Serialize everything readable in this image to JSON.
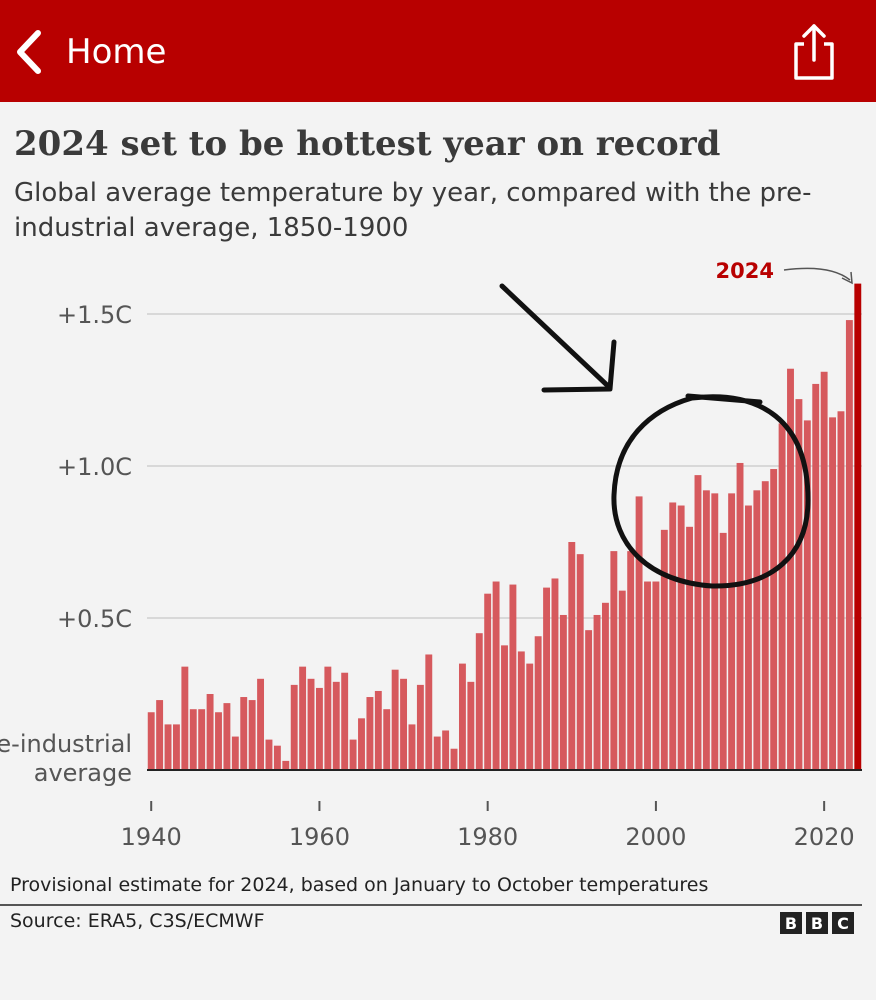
{
  "header": {
    "back_label": "Home",
    "bar_color": "#b80000",
    "back_icon": "chevron-left-icon",
    "share_icon": "share-icon"
  },
  "article": {
    "title": "2024 set to be hottest year on record",
    "subtitle": "Global average temperature by year, compared with the pre-industrial average, 1850-1900"
  },
  "chart_data": {
    "type": "bar",
    "title": "2024 set to be hottest year on record",
    "subtitle": "Global average temperature by year, compared with the pre-industrial average, 1850-1900",
    "x": [
      1940,
      1941,
      1942,
      1943,
      1944,
      1945,
      1946,
      1947,
      1948,
      1949,
      1950,
      1951,
      1952,
      1953,
      1954,
      1955,
      1956,
      1957,
      1958,
      1959,
      1960,
      1961,
      1962,
      1963,
      1964,
      1965,
      1966,
      1967,
      1968,
      1969,
      1970,
      1971,
      1972,
      1973,
      1974,
      1975,
      1976,
      1977,
      1978,
      1979,
      1980,
      1981,
      1982,
      1983,
      1984,
      1985,
      1986,
      1987,
      1988,
      1989,
      1990,
      1991,
      1992,
      1993,
      1994,
      1995,
      1996,
      1997,
      1998,
      1999,
      2000,
      2001,
      2002,
      2003,
      2004,
      2005,
      2006,
      2007,
      2008,
      2009,
      2010,
      2011,
      2012,
      2013,
      2014,
      2015,
      2016,
      2017,
      2018,
      2019,
      2020,
      2021,
      2022,
      2023,
      2024
    ],
    "values": [
      0.19,
      0.23,
      0.15,
      0.15,
      0.34,
      0.2,
      0.2,
      0.25,
      0.19,
      0.22,
      0.11,
      0.24,
      0.23,
      0.3,
      0.1,
      0.08,
      0.03,
      0.28,
      0.34,
      0.3,
      0.27,
      0.34,
      0.29,
      0.32,
      0.1,
      0.17,
      0.24,
      0.26,
      0.2,
      0.33,
      0.3,
      0.15,
      0.28,
      0.38,
      0.11,
      0.13,
      0.07,
      0.35,
      0.29,
      0.45,
      0.58,
      0.62,
      0.41,
      0.61,
      0.39,
      0.35,
      0.44,
      0.6,
      0.63,
      0.51,
      0.75,
      0.71,
      0.46,
      0.51,
      0.55,
      0.72,
      0.59,
      0.72,
      0.9,
      0.62,
      0.62,
      0.79,
      0.88,
      0.87,
      0.8,
      0.97,
      0.92,
      0.91,
      0.78,
      0.91,
      1.01,
      0.87,
      0.92,
      0.95,
      0.99,
      1.14,
      1.32,
      1.22,
      1.15,
      1.27,
      1.31,
      1.16,
      1.18,
      1.48,
      1.6
    ],
    "highlight": {
      "year": 2024,
      "label": "2024",
      "color": "#b80000"
    },
    "bar_color": "#d6595d",
    "y_ticks": [
      {
        "value": 0,
        "label": "pre-industrial average"
      },
      {
        "value": 0.5,
        "label": "+0.5C"
      },
      {
        "value": 1.0,
        "label": "+1.0C"
      },
      {
        "value": 1.5,
        "label": "+1.5C"
      }
    ],
    "x_ticks": [
      {
        "value": 1940,
        "label": "1940"
      },
      {
        "value": 1960,
        "label": "1960"
      },
      {
        "value": 1980,
        "label": "1980"
      },
      {
        "value": 2000,
        "label": "2000"
      },
      {
        "value": 2020,
        "label": "2020"
      }
    ],
    "ylim": [
      0,
      1.6
    ],
    "xlim": [
      1940,
      2024
    ],
    "grid": true
  },
  "footer": {
    "note": "Provisional estimate for 2024, based on January to October temperatures",
    "source": "Source: ERA5, C3S/ECMWF",
    "logo_letters": [
      "B",
      "B",
      "C"
    ]
  }
}
